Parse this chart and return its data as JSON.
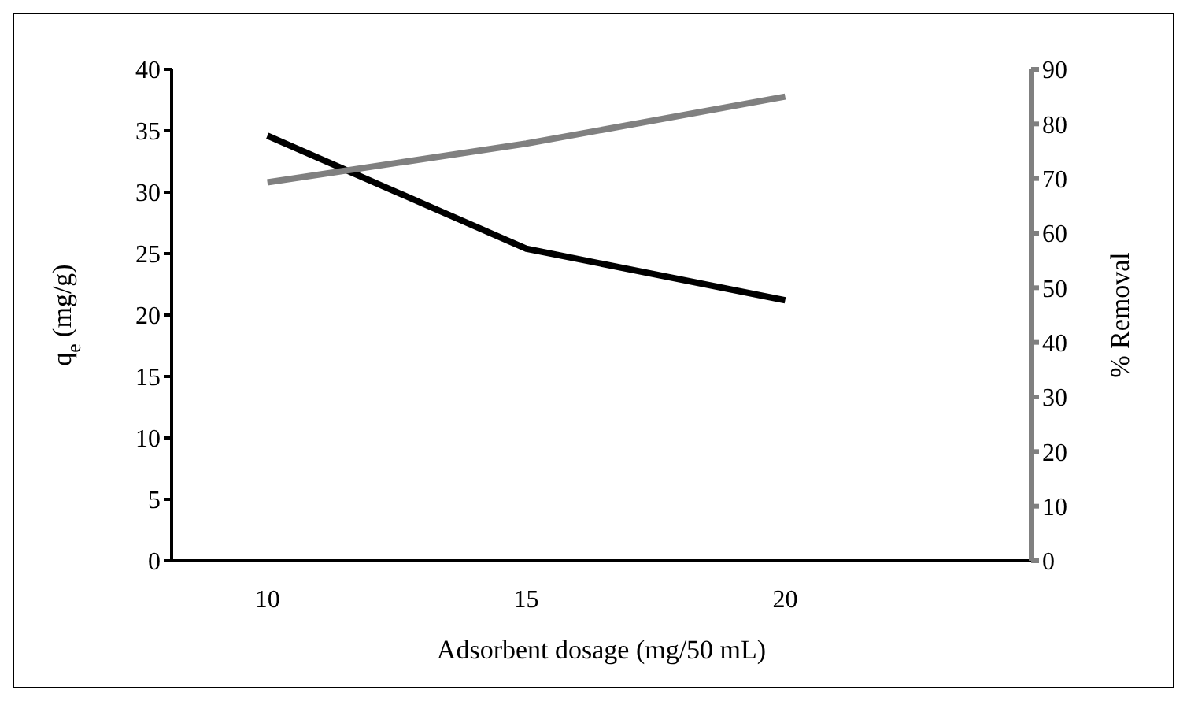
{
  "chart_data": {
    "type": "line",
    "xlabel": "Adsorbent dosage (mg/50 mL)",
    "ylabel": "q$_{e}$ (mg/g)",
    "y2label": "% Removal",
    "categories": [
      "10",
      "15",
      "20"
    ],
    "series": [
      {
        "color": "#000000",
        "values": [
          34.6,
          25.4,
          21.2
        ]
      },
      {
        "color": "#808080",
        "values": [
          69.3,
          76.4,
          85
        ],
        "axis": "y2"
      }
    ],
    "ylim": [
      0,
      40
    ],
    "yticks": [
      0,
      5,
      10,
      15,
      20,
      25,
      30,
      35,
      40
    ],
    "y2lim": [
      0,
      90
    ],
    "y2ticks": [
      0,
      10,
      20,
      30,
      40,
      50,
      60,
      70,
      80,
      90
    ],
    "marker": "none",
    "line_style": "solid"
  }
}
